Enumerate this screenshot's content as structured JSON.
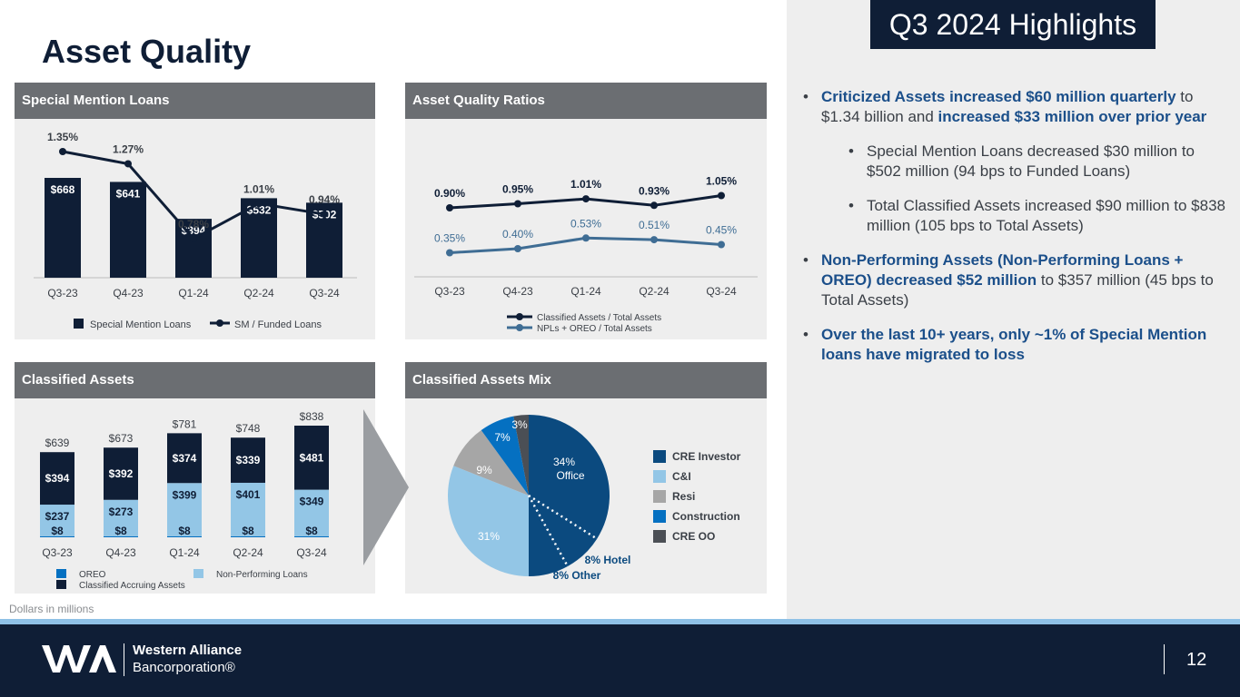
{
  "page": {
    "title": "Asset Quality",
    "highlights_tag": "Q3 2024 Highlights",
    "footnote": "Dollars in millions",
    "page_number": "12"
  },
  "logo": {
    "line1": "Western Alliance",
    "line2": "Bancorporation®"
  },
  "panels": {
    "sml": "Special Mention Loans",
    "aqr": "Asset Quality Ratios",
    "ca": "Classified Assets",
    "cam": "Classified Assets Mix"
  },
  "colors": {
    "navy": "#0f1e36",
    "dark_blue": "#0b4a7f",
    "mid_blue": "#3f6d94",
    "light_blue": "#93c6e6",
    "bright_blue": "#0570c1",
    "gray": "#a6a6a6",
    "dark_gray": "#4b4f55",
    "header_gray": "#6b6e72"
  },
  "bullets": [
    {
      "level": 1,
      "parts": [
        {
          "t": "Criticized Assets increased $60 million quarterly",
          "b": true
        },
        {
          "t": " to $1.34 billion and ",
          "b": false
        },
        {
          "t": "increased $33 million over prior year",
          "b": true
        }
      ]
    },
    {
      "level": 2,
      "parts": [
        {
          "t": "Special Mention Loans decreased $30 million to $502 million (94 bps to Funded Loans)",
          "b": false
        }
      ]
    },
    {
      "level": 2,
      "parts": [
        {
          "t": "Total Classified Assets increased $90 million to $838 million (105 bps to Total Assets)",
          "b": false
        }
      ]
    },
    {
      "level": 1,
      "parts": [
        {
          "t": "Non-Performing Assets (Non-Performing Loans + OREO) decreased $52 million",
          "b": true
        },
        {
          "t": " to $357 million (45 bps to Total Assets)",
          "b": false
        }
      ]
    },
    {
      "level": 1,
      "parts": [
        {
          "t": "Over the last 10+ years, only ~1% of Special Mention loans have migrated to loss",
          "b": true
        }
      ]
    }
  ],
  "chart_data": [
    {
      "id": "special-mention-loans",
      "type": "bar",
      "categories": [
        "Q3-23",
        "Q4-23",
        "Q1-24",
        "Q2-24",
        "Q3-24"
      ],
      "series": [
        {
          "name": "Special Mention Loans",
          "values": [
            668,
            641,
            394,
            532,
            502
          ],
          "labels": [
            "$668",
            "$641",
            "$394",
            "$532",
            "$502"
          ]
        },
        {
          "name": "SM / Funded Loans",
          "type": "line",
          "values": [
            1.35,
            1.27,
            0.78,
            1.01,
            0.94
          ],
          "labels": [
            "1.35%",
            "1.27%",
            "0.78%",
            "1.01%",
            "0.94%"
          ]
        }
      ],
      "legend": "bottom"
    },
    {
      "id": "asset-quality-ratios",
      "type": "line",
      "categories": [
        "Q3-23",
        "Q4-23",
        "Q1-24",
        "Q2-24",
        "Q3-24"
      ],
      "series": [
        {
          "name": "Classified Assets / Total Assets",
          "values": [
            0.9,
            0.95,
            1.01,
            0.93,
            1.05
          ],
          "labels": [
            "0.90%",
            "0.95%",
            "1.01%",
            "0.93%",
            "1.05%"
          ]
        },
        {
          "name": "NPLs + OREO / Total Assets",
          "values": [
            0.35,
            0.4,
            0.53,
            0.51,
            0.45
          ],
          "labels": [
            "0.35%",
            "0.40%",
            "0.53%",
            "0.51%",
            "0.45%"
          ]
        }
      ],
      "legend": "bottom"
    },
    {
      "id": "classified-assets",
      "type": "bar",
      "stacked": true,
      "categories": [
        "Q3-23",
        "Q4-23",
        "Q1-24",
        "Q2-24",
        "Q3-24"
      ],
      "series": [
        {
          "name": "OREO",
          "values": [
            8,
            8,
            8,
            8,
            8
          ],
          "labels": [
            "$8",
            "$8",
            "$8",
            "$8",
            "$8"
          ]
        },
        {
          "name": "Non-Performing Loans",
          "values": [
            237,
            273,
            399,
            401,
            349
          ],
          "labels": [
            "$237",
            "$273",
            "$399",
            "$401",
            "$349"
          ]
        },
        {
          "name": "Classified Accruing Assets",
          "values": [
            394,
            392,
            374,
            339,
            481
          ],
          "labels": [
            "$394",
            "$392",
            "$374",
            "$339",
            "$481"
          ]
        }
      ],
      "totals": [
        "$639",
        "$673",
        "$781",
        "$748",
        "$838"
      ],
      "legend": "bottom"
    },
    {
      "id": "classified-assets-mix",
      "type": "pie",
      "slices": [
        {
          "name": "Office",
          "value": 34,
          "label": "34%",
          "sub": "Office",
          "group": "CRE Investor"
        },
        {
          "name": "Hotel",
          "value": 8,
          "label": "8% Hotel",
          "group": "CRE Investor"
        },
        {
          "name": "Other",
          "value": 8,
          "label": "8% Other",
          "group": "CRE Investor"
        },
        {
          "name": "C&I",
          "value": 31,
          "label": "31%",
          "group": "C&I"
        },
        {
          "name": "Resi",
          "value": 9,
          "label": "9%",
          "group": "Resi"
        },
        {
          "name": "Construction",
          "value": 7,
          "label": "7%",
          "group": "Construction"
        },
        {
          "name": "CRE OO",
          "value": 3,
          "label": "3%",
          "group": "CRE OO"
        }
      ],
      "legend": [
        "CRE Investor",
        "C&I",
        "Resi",
        "Construction",
        "CRE OO"
      ],
      "legend_placement": "right"
    }
  ]
}
